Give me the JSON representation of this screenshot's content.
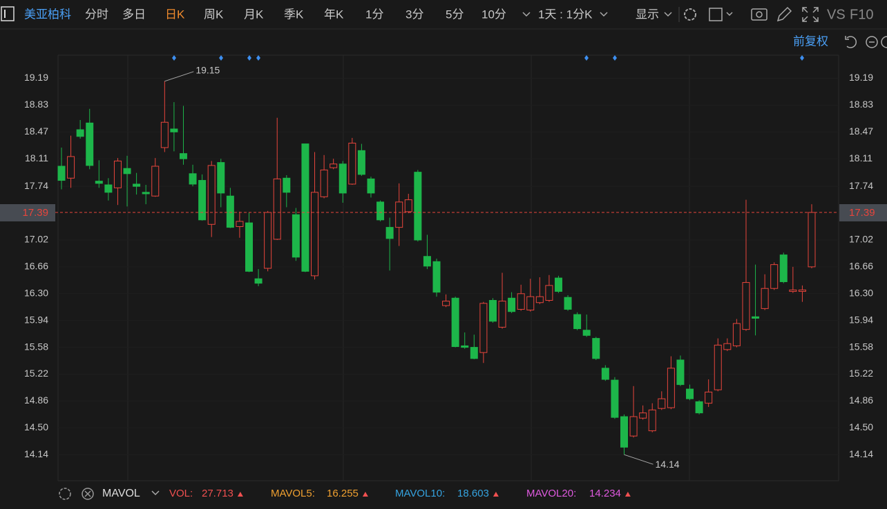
{
  "toolbar": {
    "stock": "美亚柏科",
    "tabs": [
      "分时",
      "多日",
      "日K",
      "周K",
      "月K",
      "季K",
      "年K",
      "1分",
      "3分",
      "5分",
      "10分"
    ],
    "active": 2,
    "range": "1天 : 1分K",
    "display": "显示",
    "vs": "VS",
    "f10": "F10"
  },
  "adjust": "前复权",
  "chart_data": {
    "type": "candlestick",
    "open": [
      18.01,
      17.85,
      18.5,
      18.59,
      17.81,
      17.76,
      17.72,
      17.98,
      17.77,
      17.66,
      17.61,
      18.26,
      18.51,
      18.18,
      17.91,
      17.82,
      17.23,
      18.06,
      17.61,
      17.2,
      17.25,
      16.5,
      16.64,
      17.03,
      17.85,
      17.36,
      18.31,
      16.54,
      17.6,
      17.99,
      18.04,
      17.77,
      18.22,
      17.84,
      17.53,
      17.19,
      17.19,
      17.4,
      17.93,
      16.8,
      16.73,
      16.14,
      16.24,
      15.6,
      15.58,
      15.51,
      16.21,
      15.85,
      16.24,
      16.09,
      16.08,
      16.18,
      16.21,
      16.51,
      16.25,
      16.02,
      15.81,
      15.7,
      15.3,
      15.14,
      14.65,
      14.39,
      14.63,
      14.46,
      14.76,
      14.77,
      15.41,
      15.02,
      14.85,
      14.83,
      15.01,
      15.55,
      15.6,
      15.82,
      15.99,
      16.1,
      16.37,
      16.82,
      16.33,
      16.33,
      16.66
    ],
    "high": [
      18.26,
      18.42,
      18.63,
      18.78,
      18.09,
      17.85,
      18.12,
      18.15,
      17.92,
      17.76,
      18.12,
      19.15,
      18.87,
      18.82,
      18.03,
      17.9,
      18.08,
      18.11,
      17.72,
      17.4,
      17.39,
      16.63,
      17.41,
      18.66,
      17.89,
      17.45,
      18.31,
      18.2,
      18.16,
      18.11,
      18.08,
      18.39,
      18.31,
      17.87,
      17.55,
      17.32,
      17.78,
      17.64,
      17.96,
      17.09,
      16.77,
      16.29,
      16.26,
      15.78,
      15.75,
      16.19,
      16.24,
      16.58,
      16.32,
      16.42,
      16.5,
      16.52,
      16.55,
      16.54,
      16.28,
      16.05,
      16.02,
      15.72,
      15.34,
      15.18,
      14.68,
      15.06,
      14.8,
      14.83,
      14.99,
      15.46,
      15.47,
      15.08,
      14.87,
      15.15,
      15.7,
      15.7,
      15.96,
      17.56,
      16.69,
      16.56,
      16.72,
      16.85,
      16.66,
      16.41,
      17.5
    ],
    "low": [
      17.7,
      17.72,
      18.38,
      17.97,
      17.72,
      17.55,
      17.49,
      17.47,
      17.63,
      17.5,
      17.6,
      18.2,
      18.21,
      18.03,
      17.74,
      17.28,
      17.06,
      17.46,
      17.18,
      17.05,
      16.59,
      16.4,
      16.6,
      17.02,
      17.46,
      16.74,
      16.59,
      16.49,
      17.58,
      17.97,
      17.52,
      17.76,
      17.88,
      17.59,
      17.27,
      16.61,
      16.94,
      17.38,
      17.0,
      16.63,
      16.26,
      16.12,
      15.58,
      15.56,
      15.42,
      15.37,
      15.91,
      15.83,
      16.04,
      16.07,
      16.06,
      16.16,
      16.19,
      16.31,
      16.07,
      15.81,
      15.72,
      15.41,
      15.13,
      14.62,
      14.14,
      14.37,
      14.61,
      14.44,
      14.74,
      14.75,
      15.06,
      14.87,
      14.68,
      14.78,
      14.99,
      15.53,
      15.58,
      15.8,
      15.74,
      16.08,
      16.35,
      16.44,
      16.31,
      16.19,
      16.64
    ],
    "close": [
      17.82,
      18.14,
      18.41,
      18.02,
      17.78,
      17.66,
      18.08,
      17.91,
      17.74,
      17.64,
      18.01,
      18.6,
      18.47,
      18.11,
      17.77,
      17.29,
      18.02,
      17.65,
      17.19,
      17.27,
      16.6,
      16.44,
      17.39,
      17.84,
      17.66,
      16.79,
      16.6,
      17.66,
      17.96,
      18.04,
      17.65,
      18.32,
      17.9,
      17.65,
      17.29,
      17.04,
      17.53,
      17.56,
      17.02,
      16.67,
      16.32,
      16.2,
      15.59,
      15.58,
      15.43,
      16.17,
      15.93,
      16.2,
      16.06,
      16.3,
      16.26,
      16.26,
      16.41,
      16.33,
      16.09,
      15.83,
      15.74,
      15.43,
      15.15,
      14.64,
      14.24,
      14.65,
      14.7,
      14.74,
      14.89,
      15.3,
      15.08,
      14.89,
      14.7,
      14.98,
      15.61,
      15.63,
      15.9,
      16.45,
      15.97,
      16.37,
      16.69,
      16.46,
      16.35,
      16.35,
      17.39
    ],
    "ylim": [
      13.79,
      19.5
    ],
    "yticks": [
      19.19,
      18.83,
      18.47,
      18.11,
      17.74,
      17.02,
      16.66,
      {
        "value": 16.3,
        "label": "16.30"
      },
      15.94,
      15.58,
      15.22,
      14.86,
      {
        "value": 14.5,
        "label": "14.50"
      },
      14.14
    ],
    "up_color": "#e8453c",
    "down_color": "#1db64a"
  },
  "footer": {
    "indicator": "MAVOL",
    "items": [
      {
        "name": "VOL:",
        "value": 27.713,
        "color": "#f05050",
        "value_color": "#f05050"
      },
      {
        "name": "MAVOL5:",
        "value": 16.255,
        "color": "#f0a030",
        "value_color": "#f0a030"
      },
      {
        "name": "MAVOL10:",
        "value": 18.603,
        "color": "#35a3e0",
        "value_color": "#35a3e0"
      },
      {
        "name": "MAVOL20:",
        "value": 14.234,
        "color": "#e05ae0",
        "value_color": "#e05ae0"
      }
    ]
  }
}
